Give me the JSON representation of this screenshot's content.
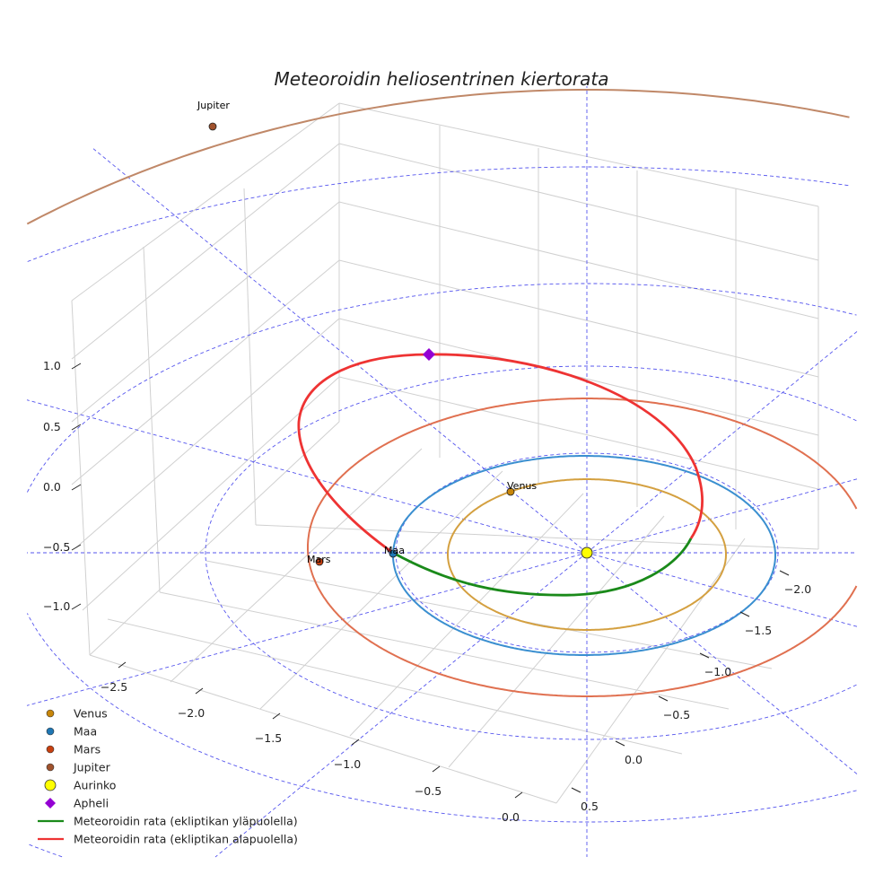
{
  "chart_data": {
    "type": "line",
    "title": "Meteoroidin heliosentrinen kiertorata",
    "projection": "3d",
    "xlabel": "",
    "ylabel": "",
    "zlabel": "",
    "x_ticks": [
      "−2.5",
      "−2.0",
      "−1.5",
      "−1.0",
      "−0.5",
      "0.0"
    ],
    "y_ticks": [
      "−2.0",
      "−1.5",
      "−1.0",
      "−0.5",
      "0.0",
      "0.5"
    ],
    "z_ticks": [
      "1.0",
      "0.5",
      "0.0",
      "−0.5",
      "−1.0"
    ],
    "grid": true,
    "legend_position": "bottom-left",
    "planets": [
      {
        "name": "Venus",
        "label": "Venus",
        "orbit_radius_au": 0.72,
        "color": "#c8860a",
        "orbit_color": "#d4a040"
      },
      {
        "name": "Maa",
        "label": "Maa",
        "orbit_radius_au": 1.0,
        "color": "#1f77b4",
        "orbit_color": "#3a8fd0"
      },
      {
        "name": "Mars",
        "label": "Mars",
        "orbit_radius_au": 1.52,
        "color": "#c84010",
        "orbit_color": "#e07050"
      },
      {
        "name": "Jupiter",
        "label": "Jupiter",
        "orbit_radius_au": 5.2,
        "color": "#a0522d",
        "orbit_color": "#c08868"
      }
    ],
    "sun": {
      "name": "Aurinko",
      "color": "#ffff00"
    },
    "aphelion": {
      "name": "Apheli",
      "color": "#9400d3"
    },
    "series": [
      {
        "name": "Meteoroidin rata (ekliptikan yläpuolella)",
        "color": "#1a8a1a"
      },
      {
        "name": "Meteoroidin rata (ekliptikan alapuolella)",
        "color": "#ee3333"
      }
    ]
  },
  "legend": [
    {
      "label": "Venus",
      "marker": "circle",
      "color": "#c8860a"
    },
    {
      "label": "Maa",
      "marker": "circle",
      "color": "#1f77b4"
    },
    {
      "label": "Mars",
      "marker": "circle",
      "color": "#c84010"
    },
    {
      "label": "Jupiter",
      "marker": "circle",
      "color": "#a0522d"
    },
    {
      "label": "Aurinko",
      "marker": "big-circle",
      "color": "#ffff00"
    },
    {
      "label": "Apheli",
      "marker": "diamond",
      "color": "#9400d3"
    },
    {
      "label": "Meteoroidin rata (ekliptikan yläpuolella)",
      "marker": "line",
      "color": "#1a8a1a"
    },
    {
      "label": "Meteoroidin rata (ekliptikan alapuolella)",
      "marker": "line",
      "color": "#ee3333"
    }
  ]
}
